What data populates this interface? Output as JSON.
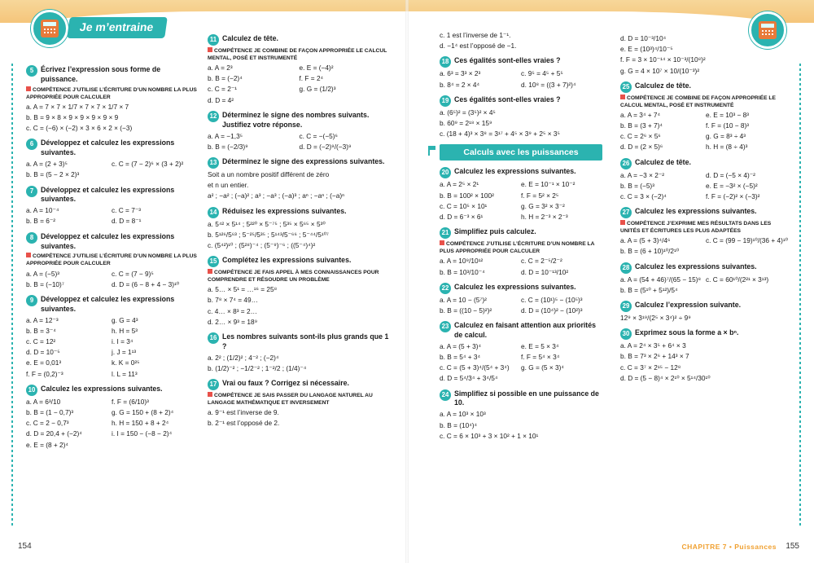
{
  "header": {
    "tab": "Je m’entraine"
  },
  "footer": {
    "left_page": "154",
    "right_page": "155",
    "chapter": "CHAPITRE 7",
    "chapter_title": "Puissances"
  },
  "section_title": "Calculs avec les puissances",
  "col1": [
    {
      "n": "5",
      "title": "Écrivez l’expression sous forme de puissance.",
      "comp": "COMPÉTENCE J’UTILISE L’ÉCRITURE D’UN NOMBRE LA PLUS APPROPRIÉE POUR CALCULER",
      "rows": [
        [
          "a. A = 7 × 7 × 1/7 × 7 × 7 × 1/7 × 7"
        ],
        [
          "b. B = 9 × 8 × 9 × 9 × 9 × 9 × 9"
        ],
        [
          "c. C = (−6) × (−2) × 3 × 6 × 2 × (−3)"
        ]
      ]
    },
    {
      "n": "6",
      "title": "Développez et calculez les expressions suivantes.",
      "rows": [
        [
          "a. A = (2 + 3)⁵",
          "c. C = (7 − 2)⁶ × (3 + 2)²"
        ],
        [
          "b. B = (5 − 2 × 2)³",
          ""
        ]
      ]
    },
    {
      "n": "7",
      "title": "Développez et calculez les expressions suivantes.",
      "rows": [
        [
          "a. A = 10⁻⁴",
          "c. C = 7⁻³"
        ],
        [
          "b. B = 6⁻²",
          "d. D = 8⁻¹"
        ]
      ]
    },
    {
      "n": "8",
      "title": "Développez et calculez les expressions suivantes.",
      "comp": "COMPÉTENCE J’UTILISE L’ÉCRITURE D’UN NOMBRE LA PLUS APPROPRIÉE POUR CALCULER",
      "rows": [
        [
          "a. A = (−5)³",
          "c. C = (7 − 9)⁵"
        ],
        [
          "b. B = (−10)⁷",
          "d. D = (6 − 8 + 4 − 3)¹⁰"
        ]
      ]
    },
    {
      "n": "9",
      "title": "Développez et calculez les expressions suivantes.",
      "rows": [
        [
          "a. A = 12⁻³",
          "g. G = 4³"
        ],
        [
          "b. B = 3⁻⁴",
          "h. H = 5³"
        ],
        [
          "c. C = 12²",
          "i. I = 3⁴"
        ],
        [
          "d. D = 10⁻⁵",
          "j. J = 1¹³"
        ],
        [
          "e. E = 0,01³",
          "k. K = 0²⁵"
        ],
        [
          "f. F = (0,2)⁻³",
          "l. L = 11³"
        ]
      ]
    },
    {
      "n": "10",
      "title": "Calculez les expressions suivantes.",
      "rows": [
        [
          "a. A = 6³/10",
          "f. F = (6/10)³"
        ],
        [
          "b. B = (1 − 0,7)³",
          "g. G = 150 + (8 + 2)⁴"
        ],
        [
          "c. C = 2 − 0,7³",
          "h. H = 150 + 8 + 2⁴"
        ],
        [
          "d. D = 20,4 + (−2)⁴",
          "i. I = 150 − (−8 − 2)⁴"
        ],
        [
          "e. E = (8 + 2)⁴",
          ""
        ]
      ]
    }
  ],
  "col2": [
    {
      "n": "11",
      "title": "Calculez de tête.",
      "comp": "COMPÉTENCE JE COMBINE DE FAÇON APPROPRIÉE LE CALCUL MENTAL, POSÉ ET INSTRUMENTÉ",
      "rows": [
        [
          "a. A = 2³",
          "e. E = (−4)²"
        ],
        [
          "b. B = (−2)⁴",
          "f. F = 2⁴"
        ],
        [
          "c. C = 2⁻¹",
          "g. G = (1/2)³"
        ],
        [
          "d. D = 4²",
          ""
        ]
      ]
    },
    {
      "n": "12",
      "title": "Déterminez le signe des nombres suivants. Justifiez votre réponse.",
      "rows": [
        [
          "a. A = −1,3⁵",
          "c. C = −(−5)⁶"
        ],
        [
          "b. B = (−2/3)⁹",
          "d. D = (−2)⁹/(−3)⁹"
        ]
      ]
    },
    {
      "n": "13",
      "title": "Déterminez le signe des expressions suivantes.",
      "rows": [
        [
          "Soit a un nombre positif différent de zéro"
        ],
        [
          "et n un entier."
        ],
        [
          "a² ; −a² ; (−a)² ; a³ ; −a³ ; (−a)³ ; aⁿ ; −aⁿ ; (−a)ⁿ"
        ]
      ]
    },
    {
      "n": "14",
      "title": "Réduisez les expressions suivantes.",
      "rows": [
        [
          "a. 5⁴² × 5¹⁴ ; 5²²⁰ × 5⁻⁷⁵ ; 5³⁵ × 5⁶⁵ × 5³⁰"
        ],
        [
          "b. 5¹²⁶/5⁶³ ; 5⁻²⁵/5³⁵ ; 5¹⁴³/5⁻⁶⁶ ; 5⁻⁴⁴/5¹⁰⁷"
        ],
        [
          "c. (5⁴²)¹⁰ ; (5²⁸)⁻⁴ ; (5⁻⁹)⁻⁶ ; ((5⁻⁴)⁴)²"
        ]
      ]
    },
    {
      "n": "15",
      "title": "Complétez les expressions suivantes.",
      "comp": "COMPÉTENCE JE FAIS APPEL À MES CONNAISSANCES POUR COMPRENDRE ET RÉSOUDRE UN PROBLÈME",
      "rows": [
        [
          "a. 5… × 5¹ = …¹⁶ = 25⁸"
        ],
        [
          "b. 7⁸ × 7⁴ = 49…"
        ],
        [
          "c. 4… × 8³ = 2…"
        ],
        [
          "d. 2… × 9³ = 18⁹"
        ]
      ]
    },
    {
      "n": "16",
      "title": "Les nombres suivants sont-ils plus grands que 1 ?",
      "rows": [
        [
          "a. 2² ; (1/2)² ; 4⁻² ; (−2)⁴"
        ],
        [
          "b. (1/2)⁻² ; −1/2⁻² ; 1⁻²/2 ; (1/4)⁻⁴"
        ]
      ]
    },
    {
      "n": "17",
      "title": "Vrai ou faux ? Corrigez si nécessaire.",
      "comp": "COMPÉTENCE JE SAIS PASSER DU LANGAGE NATUREL AU LANGAGE MATHÉMATIQUE ET INVERSEMENT",
      "rows": [
        [
          "a. 9⁻¹ est l’inverse de 9."
        ],
        [
          "b. 2⁻¹ est l’opposé de 2."
        ]
      ]
    }
  ],
  "col3_top": [
    [
      "c. 1 est l’inverse de 1⁻¹."
    ],
    [
      "d. −1⁴ est l’opposé de −1."
    ]
  ],
  "col3": [
    {
      "n": "18",
      "title": "Ces égalités sont-elles vraies ?",
      "rows": [
        [
          "a. 6³ = 3³ × 2³",
          "c. 9⁵ = 4⁵ + 5⁵"
        ],
        [
          "b. 8⁴ = 2 × 4⁴",
          "d. 10⁸ = ((3 + 7)²)⁴"
        ]
      ]
    },
    {
      "n": "19",
      "title": "Ces égalités sont-elles vraies ?",
      "rows": [
        [
          "a. (6⁵)² = (3⁵)² × 4⁵"
        ],
        [
          "b. 60⁹ = 2¹⁸ × 15⁹"
        ],
        [
          "c. (18 + 4)³ × 3⁸ = 3¹⁷ + 4⁵ × 3⁹ + 2⁵ × 3⁵"
        ]
      ]
    }
  ],
  "col3b": [
    {
      "n": "20",
      "title": "Calculez les expressions suivantes.",
      "rows": [
        [
          "a. A = 2⁵ × 2¹",
          "e. E = 10⁻¹ × 10⁻²"
        ],
        [
          "b. B = 100² × 100²",
          "f. F = 5² × 2⁵"
        ],
        [
          "c. C = 10⁵ × 10¹",
          "g. G = 3² × 3⁻²"
        ],
        [
          "d. D = 6⁻³ × 6¹",
          "h. H = 2⁻³ × 2⁻³"
        ]
      ]
    },
    {
      "n": "21",
      "title": "Simplifiez puis calculez.",
      "comp": "COMPÉTENCE J’UTILISE L’ÉCRITURE D’UN NOMBRE LA PLUS APPROPRIÉE POUR CALCULER",
      "rows": [
        [
          "a. A = 10⁹/10¹²",
          "c. C = 2⁻⁵/2⁻²"
        ],
        [
          "b. B = 10³/10⁻⁴",
          "d. D = 10⁻¹³/10²"
        ]
      ]
    },
    {
      "n": "22",
      "title": "Calculez les expressions suivantes.",
      "rows": [
        [
          "a. A = 10 − (5⁷)²",
          "c. C = (10¹)⁵ − (10⁵)³"
        ],
        [
          "b. B = ((10 − 5)²)²",
          "d. D = (10⁴)² − (10²)³"
        ]
      ]
    },
    {
      "n": "23",
      "title": "Calculez en faisant attention aux priorités de calcul.",
      "rows": [
        [
          "a. A = (5 + 3)⁴",
          "e. E = 5 × 3⁴"
        ],
        [
          "b. B = 5⁴ + 3⁴",
          "f. F = 5⁴ × 3⁴"
        ],
        [
          "c. C = (5 + 3)⁴/(5⁴ + 3⁴)",
          "g. G = (5 × 3)⁴"
        ],
        [
          "d. D = 5⁴/3⁴ + 3⁴/5⁴",
          ""
        ]
      ]
    },
    {
      "n": "24",
      "title": "Simplifiez si possible en une puissance de 10.",
      "rows": [
        [
          "a. A = 10³ × 10³"
        ],
        [
          "b. B = (10⁴)⁴"
        ],
        [
          "c. C = 6 × 10³ + 3 × 10² + 1 × 10¹"
        ]
      ]
    }
  ],
  "col4_top": [
    [
      "d. D = 10⁻³/10⁴"
    ],
    [
      "e. E = (10³)⁴/10⁻⁵"
    ],
    [
      "f. F = 3 × 10⁻¹⁴ × 10⁻³/(10⁸)²"
    ],
    [
      "g. G = 4 × 10⁷ × 10/(10⁻³)²"
    ]
  ],
  "col4": [
    {
      "n": "25",
      "title": "Calculez de tête.",
      "comp": "COMPÉTENCE JE COMBINE DE FAÇON APPROPRIÉE LE CALCUL MENTAL, POSÉ ET INSTRUMENTÉ",
      "rows": [
        [
          "a. A = 3⁴ + 7⁴",
          "e. E = 10³ − 8³"
        ],
        [
          "b. B = (3 + 7)⁴",
          "f. F = (10 − 8)³"
        ],
        [
          "c. C = 2⁶ × 5⁶",
          "g. G = 8³ ÷ 4³"
        ],
        [
          "d. D = (2 × 5)⁶",
          "h. H = (8 ÷ 4)³"
        ]
      ]
    },
    {
      "n": "26",
      "title": "Calculez de tête.",
      "rows": [
        [
          "a. A = −3 × 2⁻²",
          "d. D = (−5 × 4)⁻²"
        ],
        [
          "b. B = (−5)³",
          "e. E = −3² × (−5)²"
        ],
        [
          "c. C = 3 × (−2)⁴",
          "f. F = (−2)² × (−3)²"
        ]
      ]
    },
    {
      "n": "27",
      "title": "Calculez les expressions suivantes.",
      "comp": "COMPÉTENCE J’EXPRIME MES RÉSULTATS DANS LES UNITÉS ET ÉCRITURES LES PLUS ADAPTÉES",
      "rows": [
        [
          "a. A = (5 + 3)⁴/4⁶",
          "c. C = (99 − 19)¹⁰/(36 + 4)¹⁰"
        ],
        [
          "b. B = (6 + 10)¹⁰/2¹⁰",
          ""
        ]
      ]
    },
    {
      "n": "28",
      "title": "Calculez les expressions suivantes.",
      "rows": [
        [
          "a. A = (54 + 46)⁷/(65 − 15)⁸",
          "c. C = 60¹⁰/(2²¹ × 3¹³)"
        ],
        [
          "b. B = (5¹⁰ + 5¹²)/5⁴",
          ""
        ]
      ]
    },
    {
      "n": "29",
      "title": "Calculez l’expression suivante.",
      "rows": [
        [
          "12⁹ × 3¹⁹/(2⁵ × 3⁴)² ÷ 9⁹"
        ]
      ]
    },
    {
      "n": "30",
      "title": "Exprimez sous la forme a × bⁿ.",
      "rows": [
        [
          "a. A = 2⁴ × 3⁵ + 6⁴ × 3"
        ],
        [
          "b. B = 7³ × 2⁶ + 14³ × 7"
        ],
        [
          "c. C = 3⁷ × 2¹⁵ − 12⁸"
        ],
        [
          "d. D = (5 − 8)⁴ × 2¹⁰ × 5¹⁴/30¹⁰"
        ]
      ]
    }
  ]
}
